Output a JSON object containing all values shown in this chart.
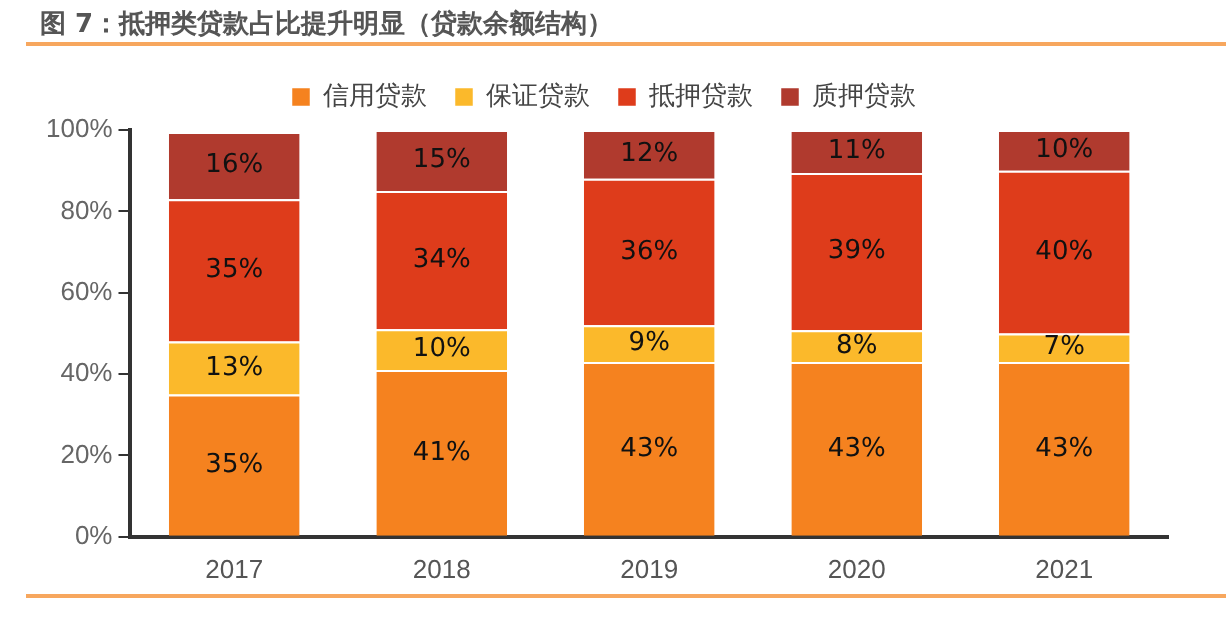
{
  "chart_data": {
    "type": "bar",
    "stacked": true,
    "title": "图 7：抵押类贷款占比提升明显（贷款余额结构）",
    "categories": [
      "2017",
      "2018",
      "2019",
      "2020",
      "2021"
    ],
    "series": [
      {
        "name": "信用贷款",
        "color": "#f5821f",
        "values": [
          35,
          41,
          43,
          43,
          43
        ],
        "value_labels": [
          "35%",
          "41%",
          "43%",
          "43%",
          "43%"
        ]
      },
      {
        "name": "保证贷款",
        "color": "#fbb92b",
        "values": [
          13,
          10,
          9,
          7.8,
          7
        ],
        "value_labels": [
          "13%",
          "10%",
          "9%",
          "8%",
          "7%"
        ]
      },
      {
        "name": "抵押贷款",
        "color": "#de3c1b",
        "values": [
          35,
          34,
          36,
          38.6,
          40
        ],
        "value_labels": [
          "35%",
          "34%",
          "36%",
          "39%",
          "40%"
        ]
      },
      {
        "name": "质押贷款",
        "color": "#b03a2e",
        "values": [
          16.5,
          15,
          12,
          10.6,
          10
        ],
        "value_labels": [
          "16%",
          "15%",
          "12%",
          "11%",
          "10%"
        ]
      }
    ],
    "ylim": [
      0,
      100
    ],
    "yticks": [
      {
        "value": 0,
        "label": "0%"
      },
      {
        "value": 20,
        "label": "20%"
      },
      {
        "value": 40,
        "label": "40%"
      },
      {
        "value": 60,
        "label": "60%"
      },
      {
        "value": 80,
        "label": "80%"
      },
      {
        "value": 100,
        "label": "100%"
      }
    ],
    "grid": false,
    "legend": "top"
  }
}
